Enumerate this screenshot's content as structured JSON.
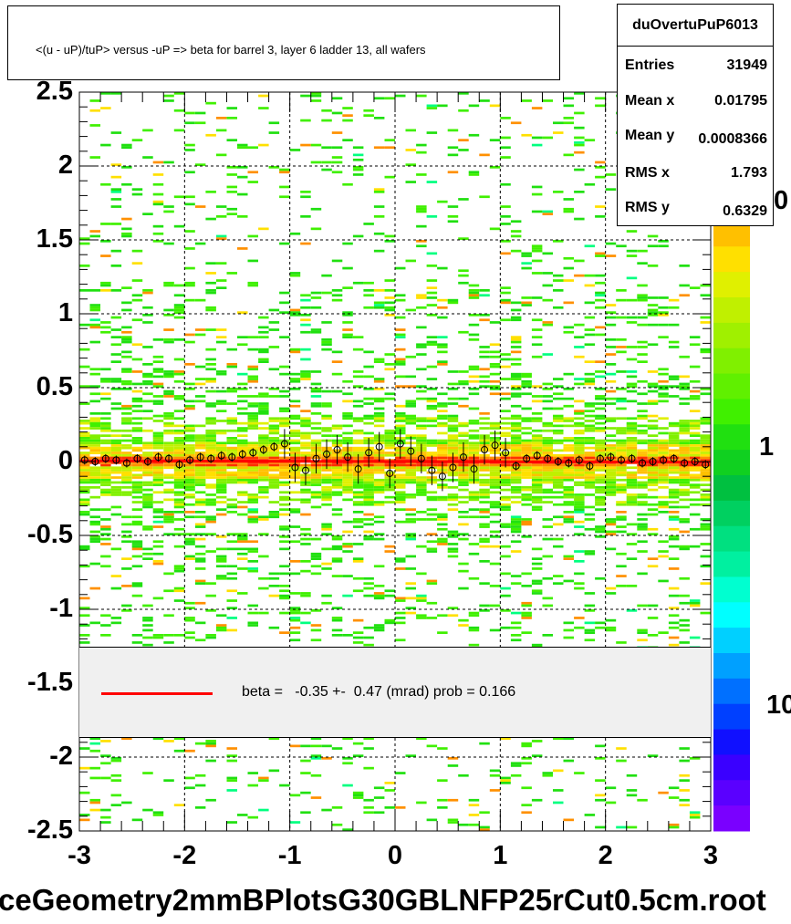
{
  "title": "<(u - uP)/tuP> versus  -uP => beta for barrel 3, layer 6 ladder 13, all wafers",
  "stats": {
    "name": "duOvertuPuP6013",
    "rows": [
      {
        "label": "Entries",
        "value": "31949"
      },
      {
        "label": "Mean x",
        "value": "0.01795"
      },
      {
        "label": "Mean y",
        "value": "0.0008366"
      },
      {
        "label": "RMS x",
        "value": "1.793"
      },
      {
        "label": "RMS y",
        "value": "0.6329"
      }
    ]
  },
  "fit_legend": "beta =   -0.35 +-  0.47 (mrad) prob = 0.166",
  "file_label": "ceGeometry2mmBPlotsG30GBLNFP25rCut0.5cm.root",
  "z_axis_labels": [
    "0",
    "1",
    "10"
  ],
  "colors": {
    "fit_line": "#ff0000",
    "legend_bg": "#f0f0f0"
  },
  "chart_data": {
    "type": "heatmap",
    "title": "<(u - uP)/tuP> versus  -uP => beta for barrel 3, layer 6 ladder 13, all wafers",
    "xlim": [
      -3,
      3
    ],
    "ylim": [
      -2.5,
      2.5
    ],
    "x_ticks": [
      "-3",
      "-2",
      "-1",
      "0",
      "1",
      "2",
      "3"
    ],
    "y_ticks": [
      "2.5",
      "2",
      "1.5",
      "1",
      "0.5",
      "0",
      "-0.5",
      "-1",
      "-1.5",
      "-2",
      "-2.5"
    ],
    "grid": true,
    "z_scale": "log",
    "band_center_y": 0.0,
    "fit": {
      "beta_mrad": -0.35,
      "beta_err_mrad": 0.47,
      "prob": 0.166
    },
    "profile_points": [
      {
        "x": -2.95,
        "y": 0.01
      },
      {
        "x": -2.85,
        "y": 0.0
      },
      {
        "x": -2.75,
        "y": 0.02
      },
      {
        "x": -2.65,
        "y": 0.01
      },
      {
        "x": -2.55,
        "y": -0.01
      },
      {
        "x": -2.45,
        "y": 0.02
      },
      {
        "x": -2.35,
        "y": 0.0
      },
      {
        "x": -2.25,
        "y": 0.03
      },
      {
        "x": -2.15,
        "y": 0.02
      },
      {
        "x": -2.05,
        "y": -0.02
      },
      {
        "x": -1.95,
        "y": 0.01
      },
      {
        "x": -1.85,
        "y": 0.03
      },
      {
        "x": -1.75,
        "y": 0.02
      },
      {
        "x": -1.65,
        "y": 0.04
      },
      {
        "x": -1.55,
        "y": 0.03
      },
      {
        "x": -1.45,
        "y": 0.05
      },
      {
        "x": -1.35,
        "y": 0.06
      },
      {
        "x": -1.25,
        "y": 0.08
      },
      {
        "x": -1.15,
        "y": 0.1
      },
      {
        "x": -1.05,
        "y": 0.12
      },
      {
        "x": -0.95,
        "y": -0.04
      },
      {
        "x": -0.85,
        "y": -0.06
      },
      {
        "x": -0.75,
        "y": 0.02
      },
      {
        "x": -0.65,
        "y": 0.05
      },
      {
        "x": -0.55,
        "y": 0.08
      },
      {
        "x": -0.45,
        "y": 0.03
      },
      {
        "x": -0.35,
        "y": -0.05
      },
      {
        "x": -0.25,
        "y": 0.06
      },
      {
        "x": -0.15,
        "y": 0.1
      },
      {
        "x": -0.05,
        "y": -0.08
      },
      {
        "x": 0.05,
        "y": 0.12
      },
      {
        "x": 0.15,
        "y": 0.07
      },
      {
        "x": 0.25,
        "y": 0.02
      },
      {
        "x": 0.35,
        "y": -0.06
      },
      {
        "x": 0.45,
        "y": -0.1
      },
      {
        "x": 0.55,
        "y": -0.04
      },
      {
        "x": 0.65,
        "y": 0.03
      },
      {
        "x": 0.75,
        "y": -0.05
      },
      {
        "x": 0.85,
        "y": 0.08
      },
      {
        "x": 0.95,
        "y": 0.11
      },
      {
        "x": 1.05,
        "y": 0.06
      },
      {
        "x": 1.15,
        "y": -0.03
      },
      {
        "x": 1.25,
        "y": 0.02
      },
      {
        "x": 1.35,
        "y": 0.04
      },
      {
        "x": 1.45,
        "y": 0.02
      },
      {
        "x": 1.55,
        "y": 0.0
      },
      {
        "x": 1.65,
        "y": -0.01
      },
      {
        "x": 1.75,
        "y": 0.01
      },
      {
        "x": 1.85,
        "y": -0.03
      },
      {
        "x": 1.95,
        "y": 0.02
      },
      {
        "x": 2.05,
        "y": 0.03
      },
      {
        "x": 2.15,
        "y": 0.01
      },
      {
        "x": 2.25,
        "y": 0.02
      },
      {
        "x": 2.35,
        "y": -0.01
      },
      {
        "x": 2.45,
        "y": 0.0
      },
      {
        "x": 2.55,
        "y": 0.01
      },
      {
        "x": 2.65,
        "y": 0.02
      },
      {
        "x": 2.75,
        "y": -0.01
      },
      {
        "x": 2.85,
        "y": 0.0
      },
      {
        "x": 2.95,
        "y": -0.02
      }
    ]
  }
}
